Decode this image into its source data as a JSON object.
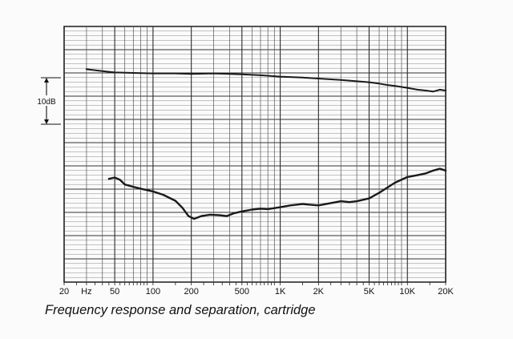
{
  "caption": "Frequency response and separation, cartridge",
  "scale": {
    "label": "10dB",
    "span_db": 10
  },
  "chart_data": {
    "type": "line",
    "title": "Frequency response and separation, cartridge",
    "xlabel": "Hz",
    "ylabel": "",
    "x_scale": "log",
    "xlim": [
      20,
      20000
    ],
    "ylim": [
      -45,
      10
    ],
    "grid": true,
    "x_tick_labels": [
      {
        "value": 20,
        "label": "20"
      },
      {
        "value": 30,
        "label": "Hz"
      },
      {
        "value": 50,
        "label": "50"
      },
      {
        "value": 100,
        "label": "100"
      },
      {
        "value": 200,
        "label": "200"
      },
      {
        "value": 500,
        "label": "500"
      },
      {
        "value": 1000,
        "label": "1K"
      },
      {
        "value": 2000,
        "label": "2K"
      },
      {
        "value": 5000,
        "label": "5K"
      },
      {
        "value": 10000,
        "label": "10K"
      },
      {
        "value": 20000,
        "label": "20K"
      }
    ],
    "series": [
      {
        "color": "#1a1a1a",
        "points": [
          [
            30,
            0.8
          ],
          [
            40,
            0.4
          ],
          [
            50,
            0.1
          ],
          [
            70,
            0.0
          ],
          [
            100,
            -0.1
          ],
          [
            150,
            -0.1
          ],
          [
            200,
            -0.2
          ],
          [
            300,
            -0.1
          ],
          [
            500,
            -0.3
          ],
          [
            700,
            -0.5
          ],
          [
            1000,
            -0.8
          ],
          [
            1500,
            -1.0
          ],
          [
            2000,
            -1.2
          ],
          [
            3000,
            -1.5
          ],
          [
            4000,
            -1.8
          ],
          [
            5000,
            -2.0
          ],
          [
            6000,
            -2.3
          ],
          [
            7000,
            -2.6
          ],
          [
            8000,
            -2.8
          ],
          [
            10000,
            -3.2
          ],
          [
            12000,
            -3.6
          ],
          [
            14000,
            -3.8
          ],
          [
            16000,
            -4.0
          ],
          [
            18000,
            -3.6
          ],
          [
            20000,
            -3.8
          ]
        ]
      },
      {
        "color": "#1a1a1a",
        "points": [
          [
            45,
            -22.8
          ],
          [
            50,
            -22.5
          ],
          [
            55,
            -23.0
          ],
          [
            60,
            -24.0
          ],
          [
            70,
            -24.5
          ],
          [
            80,
            -24.9
          ],
          [
            100,
            -25.5
          ],
          [
            120,
            -26.2
          ],
          [
            150,
            -27.5
          ],
          [
            170,
            -29.0
          ],
          [
            190,
            -30.8
          ],
          [
            210,
            -31.4
          ],
          [
            240,
            -30.8
          ],
          [
            280,
            -30.5
          ],
          [
            330,
            -30.6
          ],
          [
            380,
            -30.8
          ],
          [
            430,
            -30.2
          ],
          [
            500,
            -29.8
          ],
          [
            600,
            -29.4
          ],
          [
            700,
            -29.2
          ],
          [
            800,
            -29.3
          ],
          [
            1000,
            -28.9
          ],
          [
            1200,
            -28.5
          ],
          [
            1500,
            -28.2
          ],
          [
            2000,
            -28.5
          ],
          [
            2500,
            -28.0
          ],
          [
            3000,
            -27.6
          ],
          [
            3500,
            -27.8
          ],
          [
            4000,
            -27.6
          ],
          [
            5000,
            -27.0
          ],
          [
            6000,
            -25.8
          ],
          [
            7000,
            -24.6
          ],
          [
            8000,
            -23.6
          ],
          [
            10000,
            -22.4
          ],
          [
            12000,
            -22.0
          ],
          [
            14000,
            -21.6
          ],
          [
            16000,
            -21.0
          ],
          [
            18000,
            -20.6
          ],
          [
            20000,
            -21.0
          ]
        ]
      }
    ]
  }
}
